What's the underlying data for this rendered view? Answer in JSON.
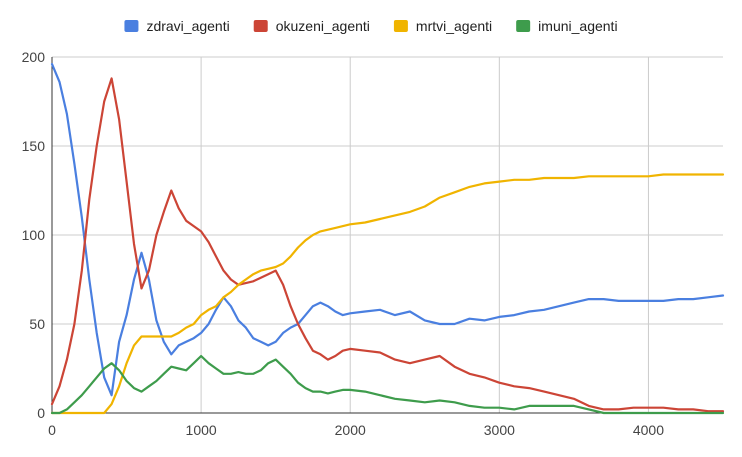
{
  "chart_data": {
    "type": "line",
    "title": "",
    "xlabel": "",
    "ylabel": "",
    "xlim": [
      0,
      4500
    ],
    "ylim": [
      0,
      200
    ],
    "x_ticks": [
      0,
      1000,
      2000,
      3000,
      4000
    ],
    "y_ticks": [
      0,
      50,
      100,
      150,
      200
    ],
    "grid": true,
    "legend_position": "top",
    "series": [
      {
        "name": "zdravi_agenti",
        "color": "#4a7fe0",
        "points": [
          [
            0,
            196
          ],
          [
            50,
            186
          ],
          [
            100,
            168
          ],
          [
            150,
            140
          ],
          [
            200,
            110
          ],
          [
            250,
            75
          ],
          [
            300,
            45
          ],
          [
            350,
            20
          ],
          [
            400,
            10
          ],
          [
            450,
            40
          ],
          [
            500,
            55
          ],
          [
            550,
            75
          ],
          [
            600,
            90
          ],
          [
            650,
            75
          ],
          [
            700,
            52
          ],
          [
            750,
            40
          ],
          [
            800,
            33
          ],
          [
            850,
            38
          ],
          [
            900,
            40
          ],
          [
            950,
            42
          ],
          [
            1000,
            45
          ],
          [
            1050,
            50
          ],
          [
            1100,
            58
          ],
          [
            1150,
            65
          ],
          [
            1200,
            60
          ],
          [
            1250,
            52
          ],
          [
            1300,
            48
          ],
          [
            1350,
            42
          ],
          [
            1400,
            40
          ],
          [
            1450,
            38
          ],
          [
            1500,
            40
          ],
          [
            1550,
            45
          ],
          [
            1600,
            48
          ],
          [
            1650,
            50
          ],
          [
            1700,
            55
          ],
          [
            1750,
            60
          ],
          [
            1800,
            62
          ],
          [
            1850,
            60
          ],
          [
            1900,
            57
          ],
          [
            1950,
            55
          ],
          [
            2000,
            56
          ],
          [
            2100,
            57
          ],
          [
            2200,
            58
          ],
          [
            2300,
            55
          ],
          [
            2400,
            57
          ],
          [
            2500,
            52
          ],
          [
            2600,
            50
          ],
          [
            2700,
            50
          ],
          [
            2800,
            53
          ],
          [
            2900,
            52
          ],
          [
            3000,
            54
          ],
          [
            3100,
            55
          ],
          [
            3200,
            57
          ],
          [
            3300,
            58
          ],
          [
            3400,
            60
          ],
          [
            3500,
            62
          ],
          [
            3600,
            64
          ],
          [
            3700,
            64
          ],
          [
            3800,
            63
          ],
          [
            3900,
            63
          ],
          [
            4000,
            63
          ],
          [
            4100,
            63
          ],
          [
            4200,
            64
          ],
          [
            4300,
            64
          ],
          [
            4400,
            65
          ],
          [
            4500,
            66
          ]
        ]
      },
      {
        "name": "okuzeni_agenti",
        "color": "#cc4536",
        "points": [
          [
            0,
            5
          ],
          [
            50,
            15
          ],
          [
            100,
            30
          ],
          [
            150,
            50
          ],
          [
            200,
            80
          ],
          [
            250,
            120
          ],
          [
            300,
            150
          ],
          [
            350,
            175
          ],
          [
            400,
            188
          ],
          [
            450,
            165
          ],
          [
            500,
            130
          ],
          [
            550,
            95
          ],
          [
            600,
            70
          ],
          [
            650,
            80
          ],
          [
            700,
            100
          ],
          [
            750,
            113
          ],
          [
            800,
            125
          ],
          [
            850,
            115
          ],
          [
            900,
            108
          ],
          [
            950,
            105
          ],
          [
            1000,
            102
          ],
          [
            1050,
            96
          ],
          [
            1100,
            88
          ],
          [
            1150,
            80
          ],
          [
            1200,
            75
          ],
          [
            1250,
            72
          ],
          [
            1300,
            73
          ],
          [
            1350,
            74
          ],
          [
            1400,
            76
          ],
          [
            1450,
            78
          ],
          [
            1500,
            80
          ],
          [
            1550,
            72
          ],
          [
            1600,
            60
          ],
          [
            1650,
            50
          ],
          [
            1700,
            42
          ],
          [
            1750,
            35
          ],
          [
            1800,
            33
          ],
          [
            1850,
            30
          ],
          [
            1900,
            32
          ],
          [
            1950,
            35
          ],
          [
            2000,
            36
          ],
          [
            2100,
            35
          ],
          [
            2200,
            34
          ],
          [
            2300,
            30
          ],
          [
            2400,
            28
          ],
          [
            2500,
            30
          ],
          [
            2600,
            32
          ],
          [
            2700,
            26
          ],
          [
            2800,
            22
          ],
          [
            2900,
            20
          ],
          [
            3000,
            17
          ],
          [
            3100,
            15
          ],
          [
            3200,
            14
          ],
          [
            3300,
            12
          ],
          [
            3400,
            10
          ],
          [
            3500,
            8
          ],
          [
            3600,
            4
          ],
          [
            3700,
            2
          ],
          [
            3800,
            2
          ],
          [
            3900,
            3
          ],
          [
            4000,
            3
          ],
          [
            4100,
            3
          ],
          [
            4200,
            2
          ],
          [
            4300,
            2
          ],
          [
            4400,
            1
          ],
          [
            4500,
            1
          ]
        ]
      },
      {
        "name": "mrtvi_agenti",
        "color": "#f0b400",
        "points": [
          [
            0,
            0
          ],
          [
            100,
            0
          ],
          [
            200,
            0
          ],
          [
            300,
            0
          ],
          [
            350,
            0
          ],
          [
            400,
            5
          ],
          [
            450,
            15
          ],
          [
            500,
            28
          ],
          [
            550,
            38
          ],
          [
            600,
            43
          ],
          [
            700,
            43
          ],
          [
            800,
            43
          ],
          [
            850,
            45
          ],
          [
            900,
            48
          ],
          [
            950,
            50
          ],
          [
            1000,
            55
          ],
          [
            1050,
            58
          ],
          [
            1100,
            60
          ],
          [
            1150,
            65
          ],
          [
            1200,
            68
          ],
          [
            1250,
            72
          ],
          [
            1300,
            75
          ],
          [
            1350,
            78
          ],
          [
            1400,
            80
          ],
          [
            1450,
            81
          ],
          [
            1500,
            82
          ],
          [
            1550,
            84
          ],
          [
            1600,
            88
          ],
          [
            1650,
            93
          ],
          [
            1700,
            97
          ],
          [
            1750,
            100
          ],
          [
            1800,
            102
          ],
          [
            1900,
            104
          ],
          [
            2000,
            106
          ],
          [
            2100,
            107
          ],
          [
            2200,
            109
          ],
          [
            2300,
            111
          ],
          [
            2400,
            113
          ],
          [
            2500,
            116
          ],
          [
            2600,
            121
          ],
          [
            2700,
            124
          ],
          [
            2800,
            127
          ],
          [
            2900,
            129
          ],
          [
            3000,
            130
          ],
          [
            3100,
            131
          ],
          [
            3200,
            131
          ],
          [
            3300,
            132
          ],
          [
            3400,
            132
          ],
          [
            3500,
            132
          ],
          [
            3600,
            133
          ],
          [
            3700,
            133
          ],
          [
            3800,
            133
          ],
          [
            3900,
            133
          ],
          [
            4000,
            133
          ],
          [
            4100,
            134
          ],
          [
            4200,
            134
          ],
          [
            4300,
            134
          ],
          [
            4400,
            134
          ],
          [
            4500,
            134
          ]
        ]
      },
      {
        "name": "imuni_agenti",
        "color": "#3e9c4c",
        "points": [
          [
            0,
            0
          ],
          [
            50,
            0
          ],
          [
            100,
            2
          ],
          [
            150,
            6
          ],
          [
            200,
            10
          ],
          [
            250,
            15
          ],
          [
            300,
            20
          ],
          [
            350,
            25
          ],
          [
            400,
            28
          ],
          [
            450,
            24
          ],
          [
            500,
            18
          ],
          [
            550,
            14
          ],
          [
            600,
            12
          ],
          [
            650,
            15
          ],
          [
            700,
            18
          ],
          [
            750,
            22
          ],
          [
            800,
            26
          ],
          [
            850,
            25
          ],
          [
            900,
            24
          ],
          [
            950,
            28
          ],
          [
            1000,
            32
          ],
          [
            1050,
            28
          ],
          [
            1100,
            25
          ],
          [
            1150,
            22
          ],
          [
            1200,
            22
          ],
          [
            1250,
            23
          ],
          [
            1300,
            22
          ],
          [
            1350,
            22
          ],
          [
            1400,
            24
          ],
          [
            1450,
            28
          ],
          [
            1500,
            30
          ],
          [
            1550,
            26
          ],
          [
            1600,
            22
          ],
          [
            1650,
            17
          ],
          [
            1700,
            14
          ],
          [
            1750,
            12
          ],
          [
            1800,
            12
          ],
          [
            1850,
            11
          ],
          [
            1900,
            12
          ],
          [
            1950,
            13
          ],
          [
            2000,
            13
          ],
          [
            2100,
            12
          ],
          [
            2200,
            10
          ],
          [
            2300,
            8
          ],
          [
            2400,
            7
          ],
          [
            2500,
            6
          ],
          [
            2600,
            7
          ],
          [
            2700,
            6
          ],
          [
            2800,
            4
          ],
          [
            2900,
            3
          ],
          [
            3000,
            3
          ],
          [
            3100,
            2
          ],
          [
            3200,
            4
          ],
          [
            3300,
            4
          ],
          [
            3400,
            4
          ],
          [
            3500,
            4
          ],
          [
            3600,
            2
          ],
          [
            3700,
            0
          ],
          [
            3800,
            0
          ],
          [
            3900,
            0
          ],
          [
            4000,
            0
          ],
          [
            4100,
            0
          ],
          [
            4200,
            0
          ],
          [
            4300,
            0
          ],
          [
            4400,
            0
          ],
          [
            4500,
            0
          ]
        ]
      }
    ]
  }
}
